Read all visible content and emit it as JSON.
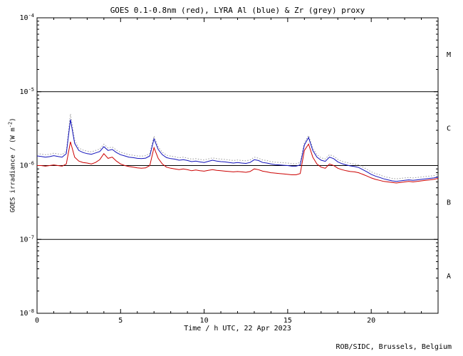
{
  "chart": {
    "title": "GOES 0.1-0.8nm (red), LYRA Al (blue) & Zr (grey) proxy",
    "xlabel": "Time / h UTC, 22 Apr 2023",
    "ylabel_prefix": "GOES irradiance / (W m",
    "ylabel_sup": "-2",
    "ylabel_suffix": ")",
    "credit": "ROB/SIDC, Brussels, Belgium"
  },
  "chart_data": {
    "type": "line",
    "title": "GOES 0.1-0.8nm (red), LYRA Al (blue) & Zr (grey) proxy",
    "xlabel": "Time / h UTC, 22 Apr 2023",
    "ylabel": "GOES irradiance / (W m^-2)",
    "x_range": [
      0,
      24
    ],
    "y_scale": "log",
    "y_range_log10": [
      -8,
      -4
    ],
    "x_major_ticks": [
      0,
      5,
      10,
      15,
      20
    ],
    "x_minor_step": 1,
    "y_tick_exponents": [
      -4,
      -5,
      -6,
      -7,
      -8
    ],
    "hlines": [
      1e-05,
      1e-06,
      1e-07
    ],
    "flare_classes": [
      {
        "label": "M",
        "log10_mid": -4.5
      },
      {
        "label": "C",
        "log10_mid": -5.5
      },
      {
        "label": "B",
        "log10_mid": -6.5
      },
      {
        "label": "A",
        "log10_mid": -7.5
      }
    ],
    "legend": "none",
    "grid": false,
    "colors": {
      "goes": "#cc0000",
      "lyra_al": "#1111bb",
      "lyra_zr": "#999999"
    },
    "x_start": 0,
    "x_step": 0.25,
    "series": [
      {
        "name": "GOES 0.1-0.8nm",
        "color_key": "goes",
        "style": "solid",
        "values": [
          1e-06,
          1e-06,
          9.8e-07,
          1e-06,
          1.02e-06,
          1e-06,
          9.8e-07,
          1.05e-06,
          2.1e-06,
          1.3e-06,
          1.15e-06,
          1.1e-06,
          1.08e-06,
          1.05e-06,
          1.1e-06,
          1.2e-06,
          1.45e-06,
          1.25e-06,
          1.3e-06,
          1.15e-06,
          1.05e-06,
          1e-06,
          9.7e-07,
          9.5e-07,
          9.3e-07,
          9.2e-07,
          9.3e-07,
          1e-06,
          1.75e-06,
          1.25e-06,
          1.05e-06,
          9.5e-07,
          9.2e-07,
          9e-07,
          8.8e-07,
          9e-07,
          8.8e-07,
          8.5e-07,
          8.7e-07,
          8.5e-07,
          8.4e-07,
          8.6e-07,
          8.8e-07,
          8.6e-07,
          8.5e-07,
          8.4e-07,
          8.3e-07,
          8.2e-07,
          8.3e-07,
          8.2e-07,
          8.1e-07,
          8.3e-07,
          9e-07,
          8.8e-07,
          8.4e-07,
          8.2e-07,
          8e-07,
          7.9e-07,
          7.8e-07,
          7.7e-07,
          7.6e-07,
          7.5e-07,
          7.5e-07,
          7.8e-07,
          1.6e-06,
          1.95e-06,
          1.3e-06,
          1.05e-06,
          9.5e-07,
          9.2e-07,
          1.05e-06,
          1e-06,
          9.2e-07,
          8.8e-07,
          8.5e-07,
          8.3e-07,
          8.2e-07,
          8e-07,
          7.6e-07,
          7.2e-07,
          6.8e-07,
          6.5e-07,
          6.3e-07,
          6.1e-07,
          6e-07,
          5.9e-07,
          5.8e-07,
          5.9e-07,
          6e-07,
          6.1e-07,
          6e-07,
          6.1e-07,
          6.2e-07,
          6.3e-07,
          6.4e-07,
          6.5e-07,
          6.7e-07
        ]
      },
      {
        "name": "LYRA Al",
        "color_key": "lyra_al",
        "style": "solid",
        "values": [
          1.35e-06,
          1.33e-06,
          1.3e-06,
          1.32e-06,
          1.36e-06,
          1.33e-06,
          1.3e-06,
          1.45e-06,
          4.2e-06,
          2e-06,
          1.6e-06,
          1.5e-06,
          1.45e-06,
          1.42e-06,
          1.48e-06,
          1.55e-06,
          1.8e-06,
          1.6e-06,
          1.65e-06,
          1.5e-06,
          1.4e-06,
          1.35e-06,
          1.3e-06,
          1.28e-06,
          1.25e-06,
          1.24e-06,
          1.26e-06,
          1.35e-06,
          2.3e-06,
          1.65e-06,
          1.4e-06,
          1.28e-06,
          1.24e-06,
          1.22e-06,
          1.18e-06,
          1.2e-06,
          1.17e-06,
          1.13e-06,
          1.15e-06,
          1.12e-06,
          1.1e-06,
          1.14e-06,
          1.18e-06,
          1.15e-06,
          1.13e-06,
          1.12e-06,
          1.1e-06,
          1.08e-06,
          1.1e-06,
          1.08e-06,
          1.07e-06,
          1.1e-06,
          1.2e-06,
          1.17e-06,
          1.1e-06,
          1.08e-06,
          1.05e-06,
          1.03e-06,
          1.02e-06,
          1.01e-06,
          1e-06,
          9.8e-07,
          9.8e-07,
          1.02e-06,
          1.9e-06,
          2.4e-06,
          1.6e-06,
          1.3e-06,
          1.18e-06,
          1.14e-06,
          1.3e-06,
          1.24e-06,
          1.12e-06,
          1.06e-06,
          1.02e-06,
          9.9e-07,
          9.7e-07,
          9.4e-07,
          8.8e-07,
          8.2e-07,
          7.6e-07,
          7.2e-07,
          6.9e-07,
          6.6e-07,
          6.4e-07,
          6.2e-07,
          6.1e-07,
          6.2e-07,
          6.3e-07,
          6.4e-07,
          6.3e-07,
          6.4e-07,
          6.5e-07,
          6.6e-07,
          6.7e-07,
          6.8e-07,
          7e-07
        ]
      },
      {
        "name": "LYRA Zr proxy",
        "color_key": "lyra_zr",
        "style": "dotted",
        "values": [
          1.45e-06,
          1.43e-06,
          1.4e-06,
          1.42e-06,
          1.47e-06,
          1.44e-06,
          1.4e-06,
          1.57e-06,
          5e-06,
          2.2e-06,
          1.73e-06,
          1.62e-06,
          1.57e-06,
          1.53e-06,
          1.6e-06,
          1.67e-06,
          1.94e-06,
          1.73e-06,
          1.78e-06,
          1.62e-06,
          1.51e-06,
          1.46e-06,
          1.4e-06,
          1.38e-06,
          1.35e-06,
          1.34e-06,
          1.36e-06,
          1.46e-06,
          2.5e-06,
          1.78e-06,
          1.51e-06,
          1.38e-06,
          1.34e-06,
          1.32e-06,
          1.27e-06,
          1.3e-06,
          1.26e-06,
          1.22e-06,
          1.24e-06,
          1.21e-06,
          1.19e-06,
          1.23e-06,
          1.27e-06,
          1.24e-06,
          1.22e-06,
          1.21e-06,
          1.19e-06,
          1.17e-06,
          1.19e-06,
          1.17e-06,
          1.16e-06,
          1.19e-06,
          1.3e-06,
          1.26e-06,
          1.19e-06,
          1.17e-06,
          1.13e-06,
          1.11e-06,
          1.1e-06,
          1.09e-06,
          1.08e-06,
          1.06e-06,
          1.06e-06,
          1.1e-06,
          2.05e-06,
          2.55e-06,
          1.73e-06,
          1.4e-06,
          1.27e-06,
          1.23e-06,
          1.4e-06,
          1.34e-06,
          1.21e-06,
          1.14e-06,
          1.1e-06,
          1.07e-06,
          1.05e-06,
          1.02e-06,
          9.5e-07,
          8.9e-07,
          8.2e-07,
          7.8e-07,
          7.5e-07,
          7.1e-07,
          6.9e-07,
          6.7e-07,
          6.6e-07,
          6.7e-07,
          6.8e-07,
          6.9e-07,
          6.8e-07,
          6.9e-07,
          7e-07,
          7.1e-07,
          7.2e-07,
          7.3e-07,
          7.6e-07
        ]
      }
    ]
  }
}
